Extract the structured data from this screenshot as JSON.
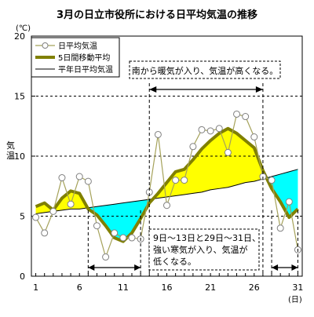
{
  "chart_data": {
    "type": "line",
    "title": "3月の日立市役所における日平均気温の推移",
    "unit_label": "(℃)",
    "ylabel": "気温",
    "xunit": "(日)",
    "ylim": [
      0,
      20
    ],
    "yticks": [
      0,
      5,
      10,
      15,
      20
    ],
    "xlim": [
      1,
      31
    ],
    "xticks": [
      1,
      6,
      11,
      16,
      21,
      26,
      31
    ],
    "grid": "horizontal dashed",
    "legend_position": "top-left",
    "x": [
      1,
      2,
      3,
      4,
      5,
      6,
      7,
      8,
      9,
      10,
      11,
      12,
      13,
      14,
      15,
      16,
      17,
      18,
      19,
      20,
      21,
      22,
      23,
      24,
      25,
      26,
      27,
      28,
      29,
      30,
      31
    ],
    "series": [
      {
        "name": "日平均気温",
        "style": "line-with-circle-markers",
        "color": "#a5a25a",
        "values": [
          4.9,
          3.6,
          5.4,
          8.2,
          6.0,
          8.3,
          7.9,
          4.2,
          1.6,
          3.6,
          3.2,
          3.2,
          3.1,
          7.0,
          11.8,
          5.9,
          8.0,
          8.0,
          10.8,
          12.2,
          12.1,
          12.3,
          10.3,
          13.5,
          13.3,
          11.6,
          8.3,
          8.0,
          4.0,
          6.2,
          2.2
        ]
      },
      {
        "name": "5日間移動平均",
        "style": "thick-line",
        "color": "#808000",
        "values": [
          5.8,
          6.1,
          5.5,
          6.5,
          7.1,
          6.9,
          5.6,
          5.1,
          4.2,
          3.2,
          2.9,
          3.6,
          4.8,
          6.1,
          6.9,
          7.8,
          8.7,
          8.9,
          9.7,
          10.6,
          11.3,
          11.9,
          12.3,
          11.9,
          11.3,
          10.7,
          8.8,
          7.3,
          6.2,
          4.9,
          5.6
        ]
      },
      {
        "name": "平年日平均気温",
        "style": "thin-line",
        "color": "#000000",
        "values": [
          5.2,
          5.3,
          5.4,
          5.5,
          5.6,
          5.6,
          5.7,
          5.8,
          5.9,
          6.0,
          6.1,
          6.2,
          6.3,
          6.4,
          6.5,
          6.6,
          6.7,
          6.8,
          6.9,
          7.0,
          7.2,
          7.3,
          7.4,
          7.6,
          7.8,
          7.9,
          8.1,
          8.3,
          8.5,
          8.7,
          8.9
        ]
      }
    ],
    "fill_above_color": "#ffff00",
    "fill_below_color": "#00ffff",
    "annotations": [
      {
        "text": "南から暖気が入り、気温が高くなる。",
        "span": [
          14,
          27
        ]
      },
      {
        "text_lines": [
          "9日～13日と29日～31日、",
          "強い寒気が入り、気温が",
          "低くなる。"
        ],
        "spans": [
          [
            7,
            13
          ],
          [
            28,
            31
          ]
        ]
      }
    ]
  }
}
